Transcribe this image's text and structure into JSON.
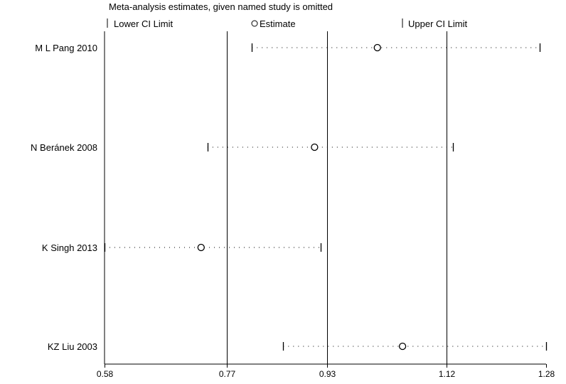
{
  "chart_data": {
    "type": "forest",
    "title": "Meta-analysis estimates, given named study is omitted",
    "legend": {
      "position": "top",
      "entries": [
        {
          "key": "lower",
          "label": "Lower CI Limit",
          "symbol": "tick"
        },
        {
          "key": "estimate",
          "label": "Estimate",
          "symbol": "circle"
        },
        {
          "key": "upper",
          "label": "Upper CI Limit",
          "symbol": "tick"
        }
      ]
    },
    "x_axis": {
      "ticks": [
        0.58,
        0.77,
        0.93,
        1.12,
        1.28
      ],
      "tick_labels": [
        "0.58",
        "0.77",
        "0.93",
        "1.12",
        "1.28"
      ],
      "range": [
        0.58,
        1.28
      ],
      "reference_lines": [
        0.77,
        0.93,
        1.12
      ]
    },
    "studies": [
      {
        "name": "M L Pang 2010",
        "lower": 0.81,
        "estimate": 1.01,
        "upper": 1.27
      },
      {
        "name": "N Beránek 2008",
        "lower": 0.74,
        "estimate": 0.91,
        "upper": 1.13
      },
      {
        "name": "K Singh 2013",
        "lower": 0.58,
        "estimate": 0.73,
        "upper": 0.92
      },
      {
        "name": "KZ Liu 2003",
        "lower": 0.86,
        "estimate": 1.05,
        "upper": 1.28
      }
    ]
  }
}
